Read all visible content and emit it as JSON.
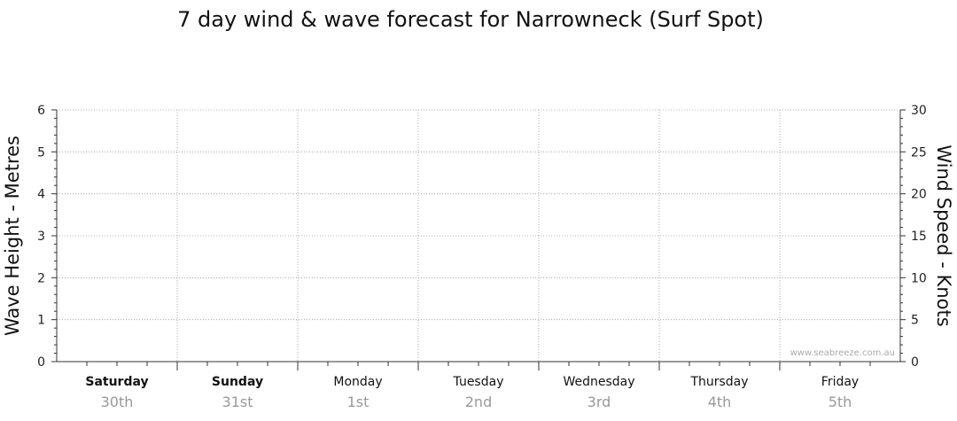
{
  "chart_data": {
    "type": "line",
    "title": "7 day wind & wave forecast for Narrowneck (Surf Spot)",
    "ylabel_left": "Wave Height - Metres",
    "ylabel_right": "Wind Speed - Knots",
    "ylim_left": [
      0,
      6
    ],
    "ylim_right": [
      0,
      30
    ],
    "yticks_left": [
      "0",
      "1",
      "2",
      "3",
      "4",
      "5",
      "6"
    ],
    "yticks_right": [
      "0",
      "5",
      "10",
      "15",
      "20",
      "25",
      "30"
    ],
    "grid": true,
    "days": [
      {
        "day": "Saturday",
        "date": "30th",
        "bold": true
      },
      {
        "day": "Sunday",
        "date": "31st",
        "bold": true
      },
      {
        "day": "Monday",
        "date": "1st",
        "bold": false
      },
      {
        "day": "Tuesday",
        "date": "2nd",
        "bold": false
      },
      {
        "day": "Wednesday",
        "date": "3rd",
        "bold": false
      },
      {
        "day": "Thursday",
        "date": "4th",
        "bold": false
      },
      {
        "day": "Friday",
        "date": "5th",
        "bold": false
      }
    ],
    "series": [],
    "watermark": "www.seabreeze.com.au"
  }
}
